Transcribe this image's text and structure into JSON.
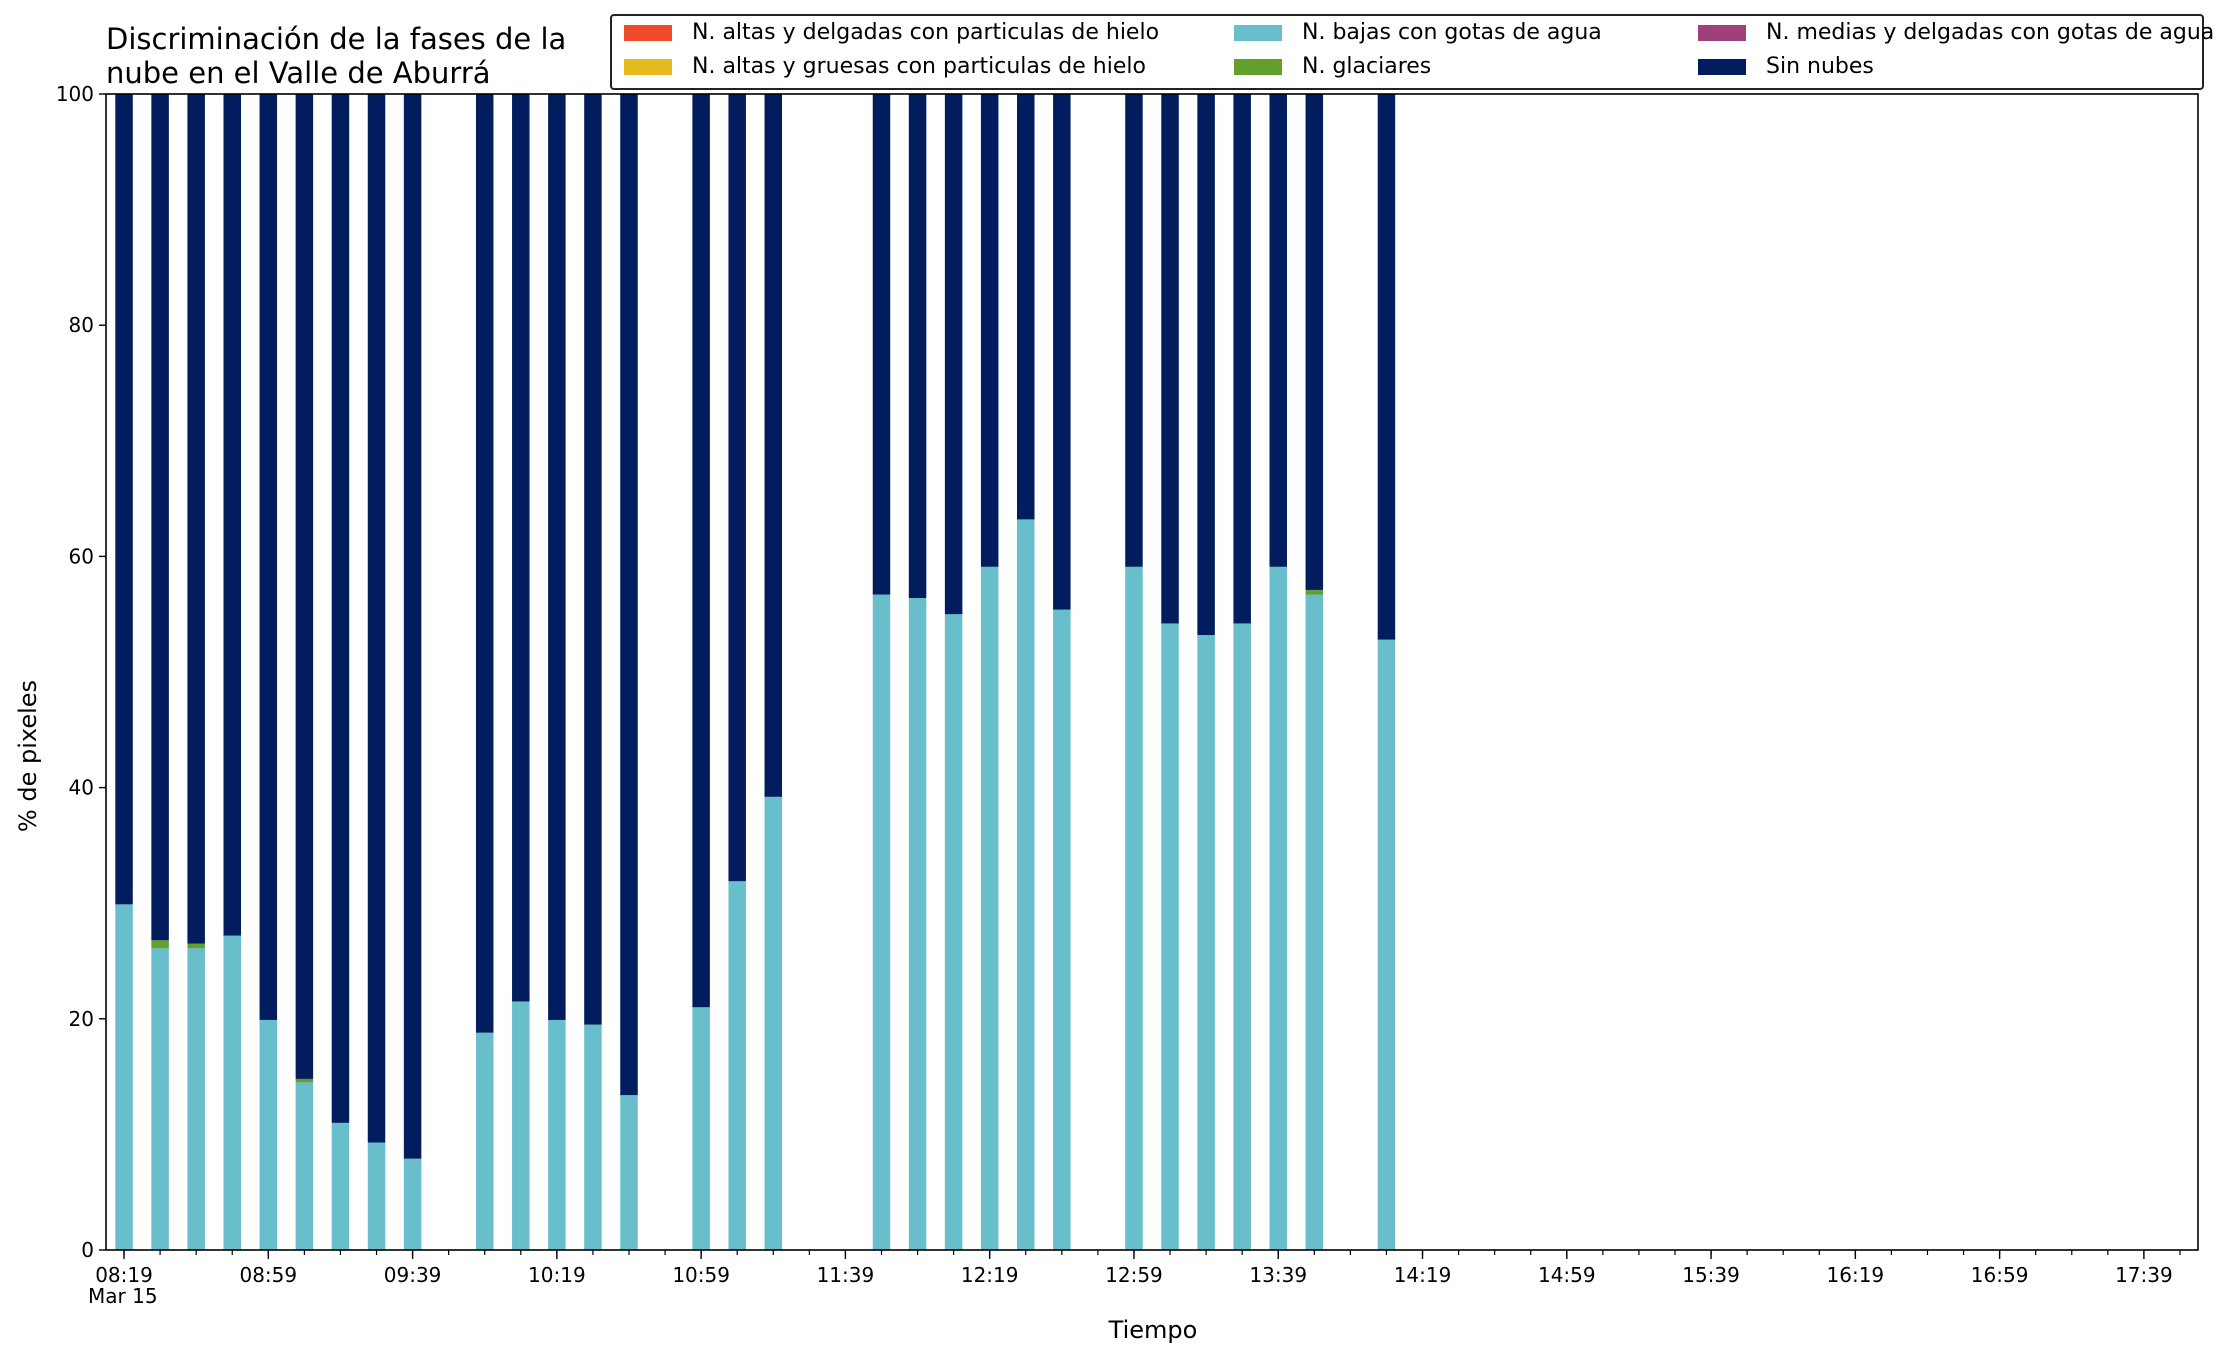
{
  "chart_data": {
    "type": "bar",
    "stacked": true,
    "title": "Discriminación de la fases de la\nnube en el Valle de Aburrá",
    "xlabel": "Tiempo",
    "ylabel": "% de pixeles",
    "ylim": [
      0,
      100
    ],
    "yticks": [
      0,
      20,
      40,
      60,
      80,
      100
    ],
    "x_range": [
      "08:14",
      "17:54"
    ],
    "xtick_labels": [
      "08:19",
      "08:59",
      "09:39",
      "10:19",
      "10:59",
      "11:39",
      "12:19",
      "12:59",
      "13:39",
      "14:19",
      "14:59",
      "15:39",
      "16:19",
      "16:59",
      "17:39"
    ],
    "xtick_sublabel": "Mar 15",
    "minor_tick_interval_minutes": 10,
    "legend_position": "upper-right",
    "legend": [
      {
        "name": "N. altas y delgadas con particulas de hielo",
        "color": "#ef4b2b"
      },
      {
        "name": "N. altas y gruesas con particulas de hielo",
        "color": "#e6bb1f"
      },
      {
        "name": "N. bajas con gotas de agua",
        "color": "#68bfcb"
      },
      {
        "name": "N. glaciares",
        "color": "#61a02c"
      },
      {
        "name": "N. medias y delgadas con gotas de agua",
        "color": "#a0407a"
      },
      {
        "name": "Sin nubes",
        "color": "#011d5d"
      }
    ],
    "categories": [
      "08:19",
      "08:29",
      "08:39",
      "08:49",
      "08:59",
      "09:09",
      "09:19",
      "09:29",
      "09:39",
      "09:59",
      "10:09",
      "10:19",
      "10:29",
      "10:39",
      "10:59",
      "11:09",
      "11:19",
      "11:49",
      "11:59",
      "12:09",
      "12:19",
      "12:29",
      "12:39",
      "12:59",
      "13:09",
      "13:19",
      "13:29",
      "13:39",
      "13:49",
      "14:09"
    ],
    "series": [
      {
        "name": "N. altas y delgadas con particulas de hielo",
        "color": "#ef4b2b",
        "values": [
          0,
          0,
          0,
          0,
          0,
          0,
          0,
          0,
          0,
          0,
          0,
          0,
          0,
          0,
          0,
          0,
          0,
          0,
          0,
          0,
          0,
          0,
          0,
          0,
          0,
          0,
          0,
          0,
          0,
          0
        ]
      },
      {
        "name": "N. altas y gruesas con particulas de hielo",
        "color": "#e6bb1f",
        "values": [
          0,
          0,
          0,
          0,
          0,
          0,
          0,
          0,
          0,
          0,
          0,
          0,
          0,
          0,
          0,
          0,
          0,
          0,
          0,
          0,
          0,
          0,
          0,
          0,
          0,
          0,
          0,
          0,
          0,
          0
        ]
      },
      {
        "name": "N. bajas con gotas de agua",
        "color": "#68bfcb",
        "values": [
          29.9,
          26.1,
          26.1,
          27.2,
          19.9,
          14.5,
          11.0,
          9.3,
          7.9,
          18.8,
          21.5,
          19.9,
          19.5,
          13.4,
          21.0,
          31.9,
          39.2,
          56.7,
          56.4,
          55.0,
          59.1,
          63.2,
          55.4,
          59.1,
          54.2,
          53.2,
          54.2,
          59.1,
          56.7,
          52.8
        ]
      },
      {
        "name": "N. glaciares",
        "color": "#61a02c",
        "values": [
          0,
          0.7,
          0.4,
          0,
          0,
          0.3,
          0,
          0,
          0,
          0,
          0,
          0,
          0,
          0,
          0,
          0,
          0,
          0,
          0,
          0,
          0,
          0,
          0,
          0,
          0,
          0,
          0,
          0,
          0.4,
          0
        ]
      },
      {
        "name": "N. medias y delgadas con gotas de agua",
        "color": "#a0407a",
        "values": [
          0,
          0,
          0,
          0,
          0,
          0,
          0,
          0,
          0,
          0,
          0,
          0,
          0,
          0,
          0,
          0,
          0,
          0,
          0,
          0,
          0,
          0,
          0,
          0,
          0,
          0,
          0,
          0,
          0,
          0
        ]
      },
      {
        "name": "Sin nubes",
        "color": "#011d5d",
        "values": [
          70.1,
          73.2,
          73.5,
          72.8,
          80.1,
          85.2,
          89.0,
          90.7,
          92.1,
          81.2,
          78.5,
          80.1,
          80.5,
          86.6,
          79.0,
          68.1,
          60.8,
          43.3,
          43.6,
          45.0,
          40.9,
          36.8,
          44.6,
          40.9,
          45.8,
          46.8,
          45.8,
          40.9,
          42.9,
          47.2
        ]
      }
    ]
  }
}
